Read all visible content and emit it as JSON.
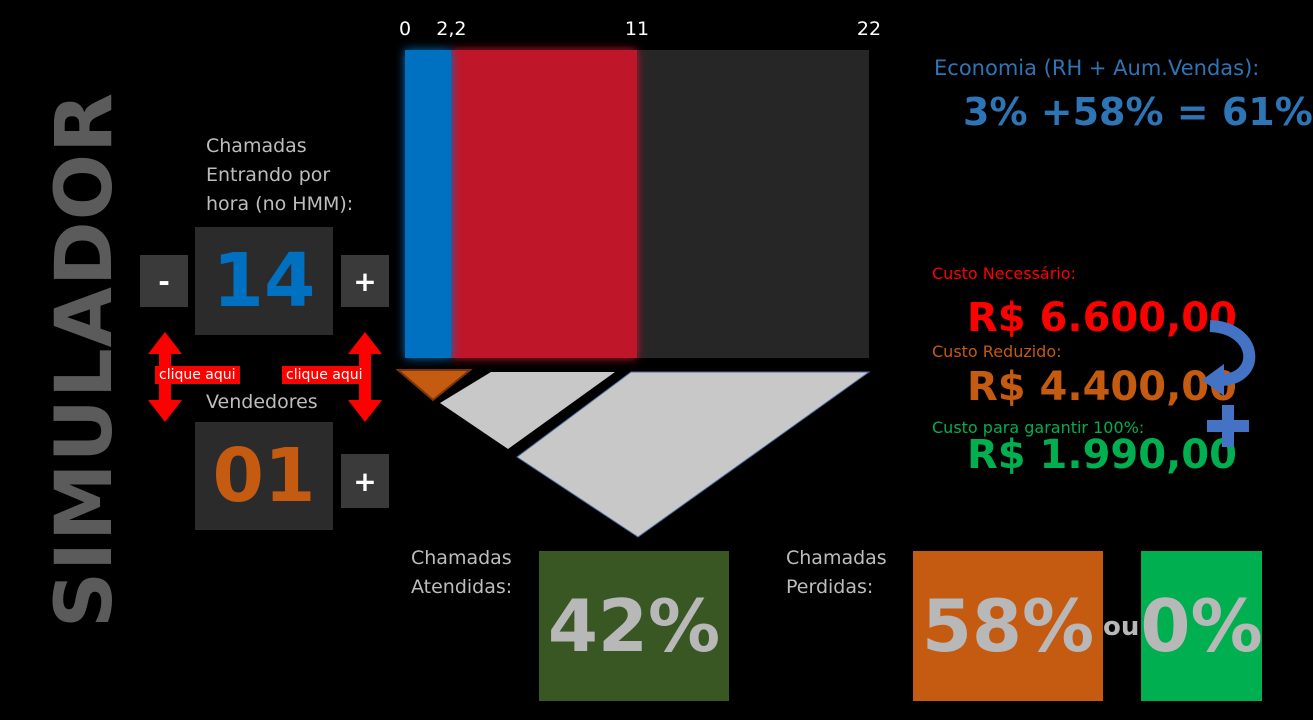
{
  "title": "SIMULADOR",
  "calls": {
    "label": "Chamadas\nEntrando por\nhora (no HMM):",
    "value": "14",
    "minus": "-",
    "plus": "+"
  },
  "sellers": {
    "label": "Vendedores",
    "value": "01",
    "plus": "+"
  },
  "hint": "clique aqui",
  "chart_data": {
    "type": "bar",
    "ticks": [
      "0",
      "2,2",
      "11",
      "22"
    ],
    "xlim": [
      0,
      22
    ],
    "segments": [
      {
        "start": 0,
        "end": 2.2,
        "color": "#0070c0"
      },
      {
        "start": 2.2,
        "end": 11,
        "color": "#c0182c"
      },
      {
        "start": 11,
        "end": 22,
        "color": "#262626"
      }
    ]
  },
  "economy": {
    "label": "Economia (RH + Aum.Vendas):",
    "value": "3% +58% = 61%"
  },
  "costs": {
    "necessary_label": "Custo Necessário:",
    "necessary_value": "R$ 6.600,00",
    "reduced_label": "Custo Reduzido:",
    "reduced_value": "R$ 4.400,00",
    "guarantee_label": "Custo para garantir 100%:",
    "guarantee_value": "R$ 1.990,00"
  },
  "answered": {
    "label": "Chamadas\nAtendidas:",
    "value": "42%"
  },
  "lost": {
    "label": "Chamadas\nPerdidas:",
    "value": "58%",
    "or": "ou",
    "alt_value": "0%"
  },
  "colors": {
    "blue": "#0070c0",
    "red": "#c0182c",
    "orange": "#c55a11",
    "green": "#00b050",
    "dark_green": "#385723",
    "cost_red": "#ff0000",
    "cost_orange": "#c55a11",
    "cost_green": "#00b050"
  }
}
